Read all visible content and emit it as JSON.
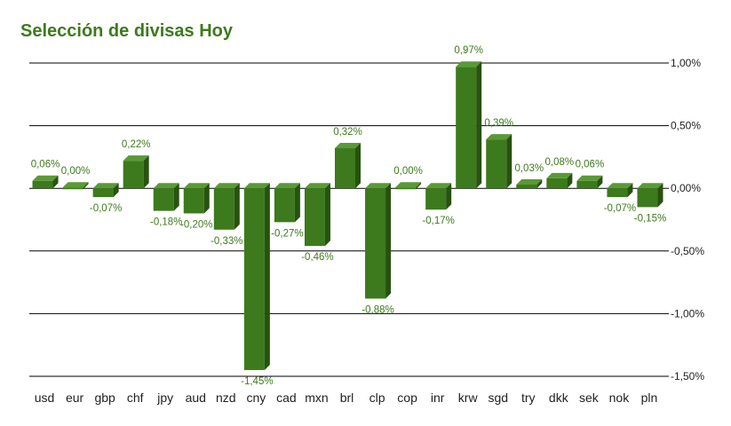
{
  "title": "Selección de divisas Hoy",
  "colors": {
    "bar_front": "#3c7a1d",
    "bar_top": "#5a9a35",
    "bar_side": "#27520f",
    "label": "#3d7a1c",
    "grid": "#000000"
  },
  "chart_data": {
    "type": "bar",
    "title": "Selección de divisas Hoy",
    "xlabel": "",
    "ylabel": "",
    "ylim": [
      -1.5,
      1.0
    ],
    "y_axis_position": "right",
    "grid": true,
    "y_ticks": [
      {
        "value": 1.0,
        "label": "1,00%"
      },
      {
        "value": 0.5,
        "label": "0,50%"
      },
      {
        "value": 0.0,
        "label": "0,00%"
      },
      {
        "value": -0.5,
        "label": "-0,50%"
      },
      {
        "value": -1.0,
        "label": "-1,00%"
      },
      {
        "value": -1.5,
        "label": "-1,50%"
      }
    ],
    "categories": [
      "usd",
      "eur",
      "gbp",
      "chf",
      "jpy",
      "aud",
      "nzd",
      "cny",
      "cad",
      "mxn",
      "brl",
      "clp",
      "cop",
      "inr",
      "krw",
      "sgd",
      "try",
      "dkk",
      "sek",
      "nok",
      "pln"
    ],
    "values": [
      0.06,
      0.0,
      -0.07,
      0.22,
      -0.18,
      -0.2,
      -0.33,
      -1.45,
      -0.27,
      -0.46,
      0.32,
      -0.88,
      0.0,
      -0.17,
      0.97,
      0.39,
      0.03,
      0.08,
      0.06,
      -0.07,
      -0.15
    ],
    "value_labels": [
      "0,06%",
      "0,00%",
      "-0,07%",
      "0,22%",
      "-0,18%",
      "-0,20%",
      "-0,33%",
      "-1,45%",
      "-0,27%",
      "-0,46%",
      "0,32%",
      "-0,88%",
      "0,00%",
      "-0,17%",
      "0,97%",
      "0,39%",
      "0,03%",
      "0,08%",
      "0,06%",
      "-0,07%",
      "-0,15%"
    ]
  }
}
